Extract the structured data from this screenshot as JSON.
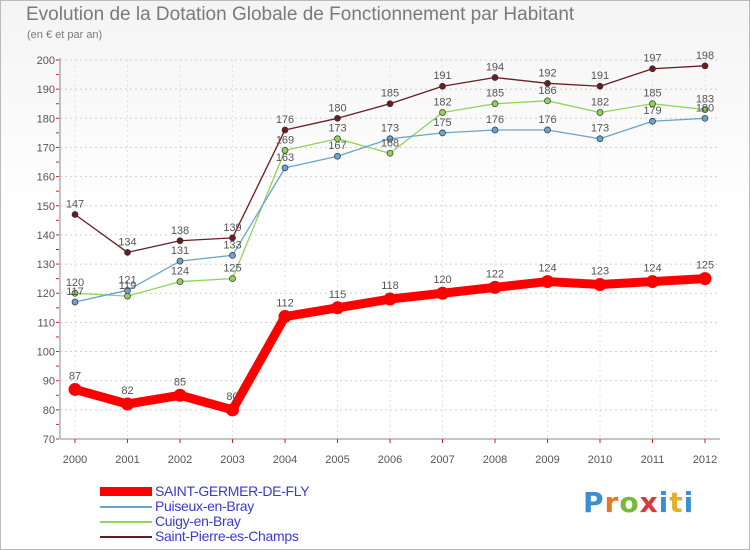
{
  "chart_data": {
    "type": "line",
    "title": "Evolution de la Dotation Globale de Fonctionnement par Habitant",
    "subtitle": "(en € et par an)",
    "xlabel": "",
    "ylabel": "",
    "ylim": [
      70,
      200
    ],
    "yticks": [
      70,
      80,
      90,
      100,
      110,
      120,
      130,
      140,
      150,
      160,
      170,
      180,
      190,
      200
    ],
    "x": [
      "2000",
      "2001",
      "2002",
      "2003",
      "2004",
      "2005",
      "2006",
      "2007",
      "2008",
      "2009",
      "2010",
      "2011",
      "2012"
    ],
    "legend_position": "bottom-left",
    "grid": true,
    "series": [
      {
        "key": "pierre",
        "name": "Saint-Pierre-es-Champs",
        "color": "#6b1c22",
        "values": [
          147,
          134,
          138,
          139,
          176,
          180,
          185,
          191,
          194,
          192,
          191,
          197,
          198
        ]
      },
      {
        "key": "cuigy",
        "name": "Cuigy-en-Bray",
        "color": "#8fd45a",
        "values": [
          120,
          119,
          124,
          125,
          169,
          173,
          168,
          182,
          185,
          186,
          182,
          185,
          183
        ]
      },
      {
        "key": "puiseux",
        "name": "Puiseux-en-Bray",
        "color": "#6ba3cf",
        "values": [
          117,
          121,
          131,
          133,
          163,
          167,
          173,
          175,
          176,
          176,
          173,
          179,
          180
        ]
      },
      {
        "key": "saint",
        "name": "SAINT-GERMER-DE-FLY",
        "color": "#ff0000",
        "values": [
          87,
          82,
          85,
          80,
          112,
          115,
          118,
          120,
          122,
          124,
          123,
          124,
          125
        ]
      }
    ]
  },
  "legend": {
    "items": [
      {
        "label": "SAINT-GERMER-DE-FLY",
        "color": "#ff0000"
      },
      {
        "label": "Puiseux-en-Bray",
        "color": "#6ba3cf"
      },
      {
        "label": "Cuigy-en-Bray",
        "color": "#8fd45a"
      },
      {
        "label": "Saint-Pierre-es-Champs",
        "color": "#6b1c22"
      }
    ]
  },
  "logo": {
    "p": "P",
    "r": "r",
    "o": "o",
    "x": "x",
    "i": "i",
    "t": "t",
    "i2": "i"
  }
}
